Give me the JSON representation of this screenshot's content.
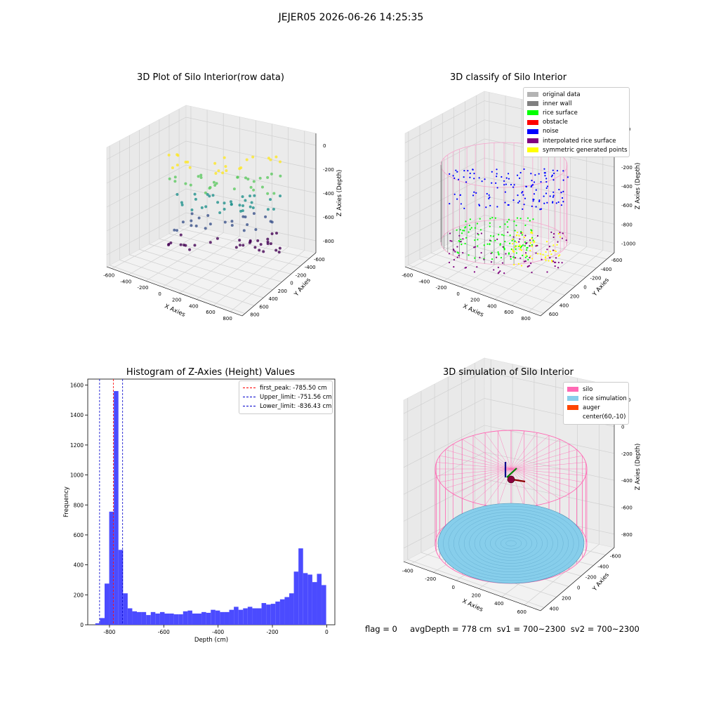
{
  "figure": {
    "suptitle": "JEJER05 2026-06-26 14:25:35",
    "footer": "flag = 0     avgDepth = 778 cm  sv1 = 700~2300  sv2 = 700~2300"
  },
  "chart_data": [
    {
      "type": "scatter",
      "title": "3D Plot of Silo Interior(row data)",
      "xlabel": "X Axies",
      "ylabel": "Y Axies",
      "zlabel": "Z Axies (Depth)",
      "x_ticks": [
        "-600",
        "-400",
        "-200",
        "0",
        "200",
        "400",
        "600",
        "800"
      ],
      "y_ticks": [
        "-600",
        "-400",
        "-200",
        "0",
        "200",
        "400",
        "600",
        "800"
      ],
      "z_ticks": [
        "0",
        "-200",
        "-400",
        "-600",
        "-800"
      ],
      "xlim": [
        -600,
        800
      ],
      "ylim": [
        -600,
        800
      ],
      "zlim": [
        -900,
        0
      ],
      "colormap": "viridis",
      "grid": true
    },
    {
      "type": "scatter",
      "title": "3D classify of Silo Interior",
      "xlabel": "X Axies",
      "ylabel": "Y Axies",
      "zlabel": "Z Axies (Depth)",
      "x_ticks": [
        "-600",
        "-400",
        "-200",
        "0",
        "200",
        "400",
        "600",
        "800"
      ],
      "y_ticks": [
        "-600",
        "-400",
        "-200",
        "0",
        "200",
        "400",
        "600"
      ],
      "z_ticks": [
        "200",
        "0",
        "-200",
        "-400",
        "-600",
        "-800",
        "-1000"
      ],
      "xlim": [
        -600,
        800
      ],
      "ylim": [
        -600,
        600
      ],
      "zlim": [
        -1000,
        200
      ],
      "legend_position": "top-right",
      "grid": true,
      "legend": [
        {
          "label": "original data",
          "color": "#b3b3b3"
        },
        {
          "label": "inner wall",
          "color": "#808080"
        },
        {
          "label": "rice surface",
          "color": "#00ff00"
        },
        {
          "label": "obstacle",
          "color": "#ff0000"
        },
        {
          "label": "noise",
          "color": "#0000ff"
        },
        {
          "label": "interpolated rice surface",
          "color": "#800080"
        },
        {
          "label": "symmetric generated points",
          "color": "#ffff00"
        }
      ]
    },
    {
      "type": "bar",
      "title": "Histogram of Z-Axies (Height) Values",
      "xlabel": "Depth (cm)",
      "ylabel": "Frequency",
      "xlim": [
        -880,
        30
      ],
      "ylim": [
        0,
        1640
      ],
      "x_ticks": [
        -800,
        -600,
        -400,
        -200,
        0
      ],
      "y_ticks": [
        0,
        200,
        400,
        600,
        800,
        1000,
        1200,
        1400,
        1600
      ],
      "bar_color": "#4b4bff",
      "bin_start": -852,
      "bin_width": 17,
      "values": [
        10,
        45,
        275,
        755,
        1560,
        500,
        210,
        110,
        90,
        85,
        85,
        65,
        85,
        75,
        85,
        75,
        75,
        70,
        70,
        90,
        95,
        75,
        75,
        85,
        80,
        100,
        95,
        85,
        85,
        100,
        120,
        100,
        110,
        120,
        110,
        110,
        145,
        135,
        140,
        155,
        170,
        185,
        210,
        355,
        510,
        345,
        335,
        285,
        340,
        265
      ],
      "reference_lines": [
        {
          "label": "first_peak: -785.50 cm",
          "x": -785.5,
          "color": "#ff0000"
        },
        {
          "label": "Upper_limit: -751.56 cm",
          "x": -751.56,
          "color": "#0000cc"
        },
        {
          "label": "Lower_limit: -836.43 cm",
          "x": -836.43,
          "color": "#0000cc"
        }
      ],
      "legend_position": "top-right"
    },
    {
      "type": "scatter",
      "title": "3D simulation of Silo Interior",
      "xlabel": "X Axies",
      "ylabel": "Y Axies",
      "zlabel": "Z Axies (Depth)",
      "x_ticks": [
        "-400",
        "-200",
        "0",
        "200",
        "400",
        "600"
      ],
      "y_ticks": [
        "-600",
        "-400",
        "-200",
        "0",
        "200",
        "400"
      ],
      "z_ticks": [
        "200",
        "0",
        "-200",
        "-400",
        "-600",
        "-800"
      ],
      "xlim": [
        -500,
        700
      ],
      "ylim": [
        -600,
        400
      ],
      "zlim": [
        -850,
        300
      ],
      "legend_position": "top-right",
      "grid": true,
      "legend": [
        {
          "label": "silo",
          "color": "#ff69b4"
        },
        {
          "label": "rice simulation",
          "color": "#87ceeb"
        },
        {
          "label": "auger",
          "color": "#ff4500"
        },
        {
          "label": "center(60,-10)",
          "color": "#ffffff"
        }
      ]
    }
  ]
}
